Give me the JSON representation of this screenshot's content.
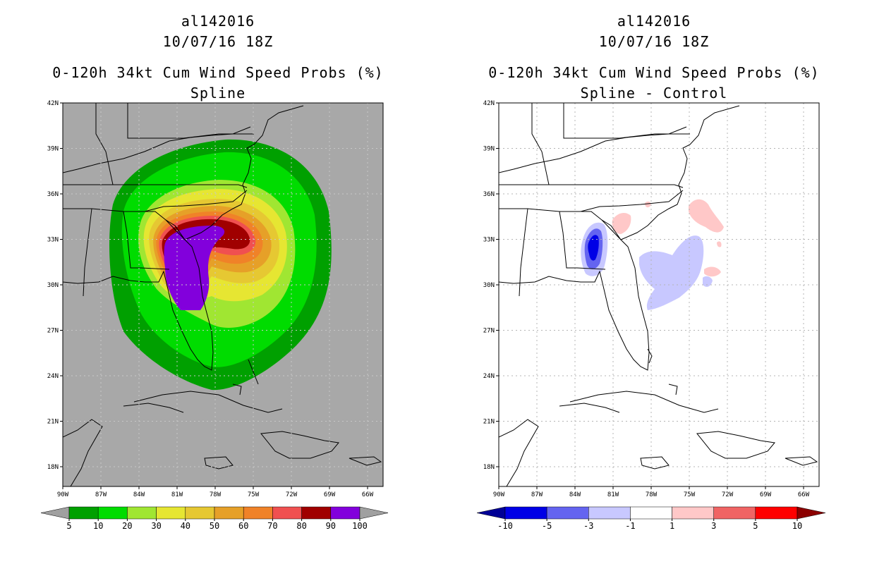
{
  "panels": [
    {
      "storm_id": "al142016",
      "datetime": "10/07/16 18Z",
      "title": "0-120h 34kt Cum Wind Speed Probs (%)",
      "subtitle": "Spline",
      "colorbar": {
        "colors": [
          "#00a000",
          "#00dc00",
          "#a0e632",
          "#e6e632",
          "#e6c832",
          "#e6a028",
          "#f08228",
          "#f05050",
          "#a00000",
          "#8200dc"
        ],
        "end_low": "#a0a0a0",
        "end_high": "#a0a0a0",
        "labels": [
          "5",
          "10",
          "20",
          "30",
          "40",
          "50",
          "60",
          "70",
          "80",
          "90",
          "100"
        ]
      }
    },
    {
      "storm_id": "al142016",
      "datetime": "10/07/16 18Z",
      "title": "0-120h 34kt Cum Wind Speed Probs (%)",
      "subtitle": "Spline - Control",
      "colorbar": {
        "colors": [
          "#0000e6",
          "#6464f0",
          "#c8c8ff",
          "#ffffff",
          "#ffc8c8",
          "#f06464",
          "#ff0000"
        ],
        "end_low": "#000096",
        "end_high": "#8c0000",
        "labels": [
          "-10",
          "-5",
          "-3",
          "-1",
          "1",
          "3",
          "5",
          "10"
        ]
      }
    }
  ],
  "map": {
    "lat_labels": [
      "42N",
      "39N",
      "36N",
      "33N",
      "30N",
      "27N",
      "24N",
      "21N",
      "18N"
    ],
    "lon_labels": [
      "90W",
      "87W",
      "84W",
      "81W",
      "78W",
      "75W",
      "72W",
      "69W",
      "66W"
    ],
    "land_color": "#a8a8a8",
    "coast_color": "#000000"
  }
}
